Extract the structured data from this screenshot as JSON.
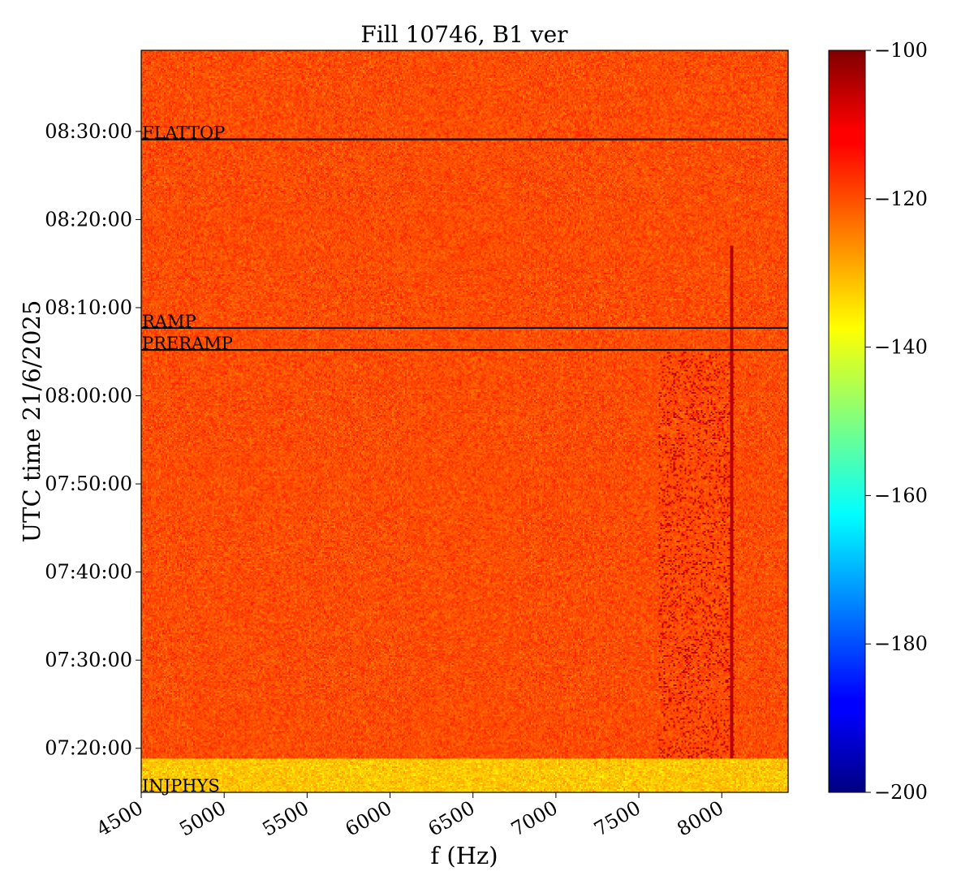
{
  "chart_data": {
    "type": "heatmap",
    "title": "Fill 10746, B1 ver",
    "xlabel": "f (Hz)",
    "ylabel": "UTC time 21/6/2025",
    "xlim": [
      4500,
      8400
    ],
    "x_ticks": [
      {
        "value": 4500,
        "label": "4500"
      },
      {
        "value": 5000,
        "label": "5000"
      },
      {
        "value": 5500,
        "label": "5500"
      },
      {
        "value": 6000,
        "label": "6000"
      },
      {
        "value": 6500,
        "label": "6500"
      },
      {
        "value": 7000,
        "label": "7000"
      },
      {
        "value": 7500,
        "label": "7500"
      },
      {
        "value": 8000,
        "label": "8000"
      }
    ],
    "ylim_minutes_utc": [
      435,
      519.2
    ],
    "y_ticks": [
      {
        "value": 440,
        "label": "07:20:00"
      },
      {
        "value": 450,
        "label": "07:30:00"
      },
      {
        "value": 460,
        "label": "07:40:00"
      },
      {
        "value": 470,
        "label": "07:50:00"
      },
      {
        "value": 480,
        "label": "08:00:00"
      },
      {
        "value": 490,
        "label": "08:10:00"
      },
      {
        "value": 500,
        "label": "08:20:00"
      },
      {
        "value": 510,
        "label": "08:30:00"
      }
    ],
    "phase_markers": [
      {
        "label": "INJPHYS",
        "time": 435
      },
      {
        "label": "PRERAMP",
        "time": 485.2
      },
      {
        "label": "RAMP",
        "time": 487.7
      },
      {
        "label": "FLATTOP",
        "time": 509.1
      }
    ],
    "colorbar": {
      "colormap": "jet",
      "range": [
        -200,
        -100
      ],
      "ticks": [
        {
          "value": -100,
          "label": "−100"
        },
        {
          "value": -120,
          "label": "−120"
        },
        {
          "value": -140,
          "label": "−140"
        },
        {
          "value": -160,
          "label": "−160"
        },
        {
          "value": -180,
          "label": "−180"
        },
        {
          "value": -200,
          "label": "−200"
        }
      ]
    },
    "regions": {
      "injection_end_time": 438.8,
      "injection_level_db": -132,
      "background_level_db": -120,
      "strong_band_f": [
        7620,
        8080
      ],
      "strong_band_time": [
        438.8,
        485
      ],
      "vertical_line_f": 8060
    }
  }
}
